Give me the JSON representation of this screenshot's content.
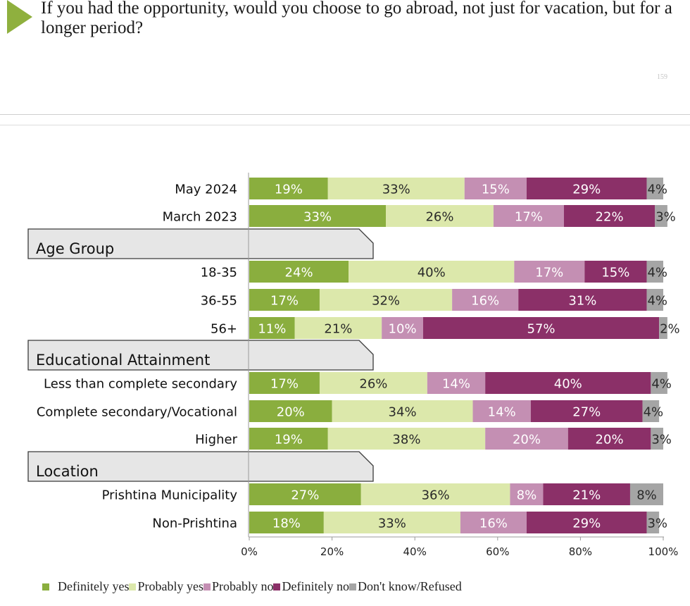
{
  "header": {
    "title": "If you had the opportunity, would you choose to go abroad, not just for vacation, but for a longer period?",
    "slide_number": "159"
  },
  "colors": {
    "accent": "#8fb03e",
    "definitely_yes": "#8aae3e",
    "probably_yes": "#dce8ab",
    "probably_no": "#c48fb3",
    "definitely_no": "#8b3068",
    "dont_know": "#a5a5a5"
  },
  "chart_data": {
    "type": "bar",
    "orientation": "horizontal",
    "stacked": true,
    "xlim": [
      0,
      100
    ],
    "x_ticks": [
      "0%",
      "20%",
      "40%",
      "60%",
      "80%",
      "100%"
    ],
    "legend_position": "bottom",
    "series": [
      {
        "name": "Definitely yes",
        "color": "#8aae3e"
      },
      {
        "name": "Probably yes",
        "color": "#dce8ab"
      },
      {
        "name": "Probably no",
        "color": "#c48fb3"
      },
      {
        "name": "Definitely no",
        "color": "#8b3068"
      },
      {
        "name": "Don't know/Refused",
        "color": "#a5a5a5"
      }
    ],
    "groups": [
      {
        "label": "",
        "rows": [
          {
            "category": "May 2024",
            "values": [
              19,
              33,
              15,
              29,
              4
            ]
          },
          {
            "category": "March 2023",
            "values": [
              33,
              26,
              17,
              22,
              3
            ]
          }
        ]
      },
      {
        "label": "Age Group",
        "rows": [
          {
            "category": "18-35",
            "values": [
              24,
              40,
              17,
              15,
              4
            ]
          },
          {
            "category": "36-55",
            "values": [
              17,
              32,
              16,
              31,
              4
            ]
          },
          {
            "category": "56+",
            "values": [
              11,
              21,
              10,
              57,
              2
            ]
          }
        ]
      },
      {
        "label": "Educational Attainment",
        "rows": [
          {
            "category": "Less than complete secondary",
            "values": [
              17,
              26,
              14,
              40,
              4
            ]
          },
          {
            "category": "Complete secondary/Vocational",
            "values": [
              20,
              34,
              14,
              27,
              4
            ]
          },
          {
            "category": "Higher",
            "values": [
              19,
              38,
              20,
              20,
              3
            ]
          }
        ]
      },
      {
        "label": "Location",
        "rows": [
          {
            "category": "Prishtina Municipality",
            "values": [
              27,
              36,
              8,
              21,
              8
            ]
          },
          {
            "category": "Non-Prishtina",
            "values": [
              18,
              33,
              16,
              29,
              3
            ]
          }
        ]
      }
    ]
  }
}
